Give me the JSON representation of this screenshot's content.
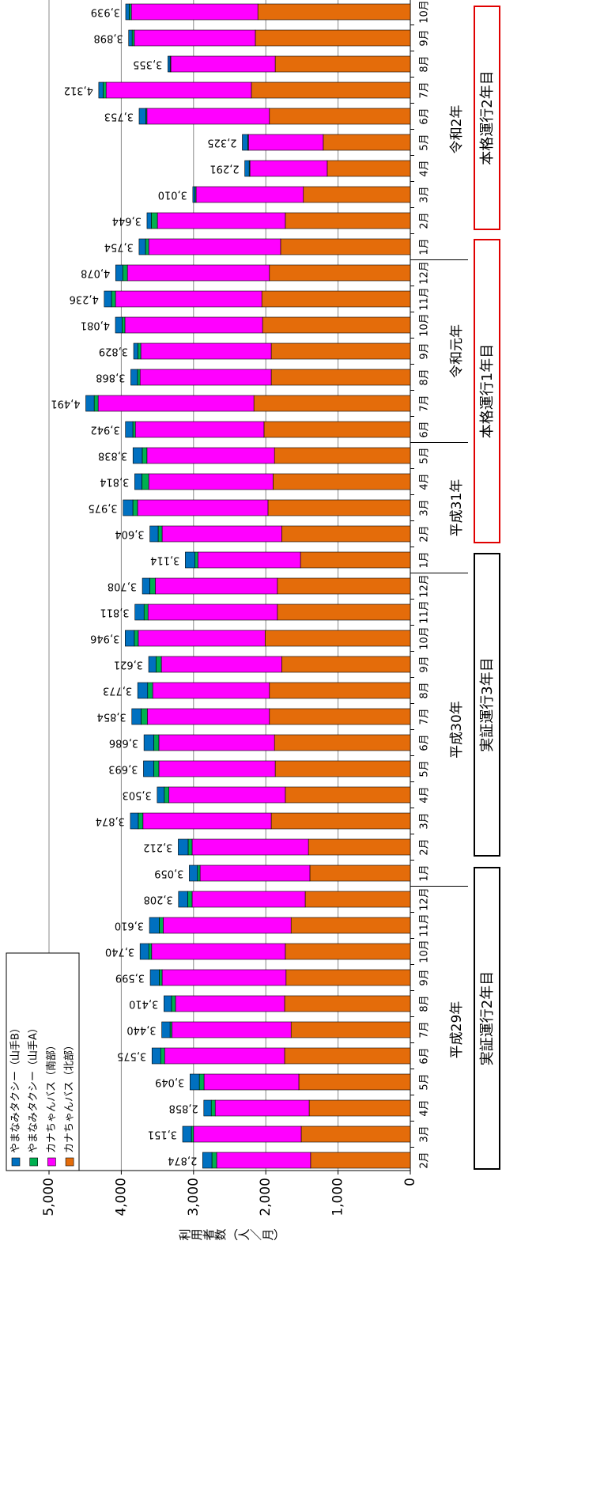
{
  "chart_data": {
    "type": "stacked-bar",
    "y_axis_label": "利用者数（人／月）",
    "ylim": [
      0,
      5000
    ],
    "yticks": [
      0,
      {
        "value": 1000,
        "label": "1,000"
      },
      {
        "value": 2000,
        "label": "2,000"
      },
      {
        "value": 3000,
        "label": "3,000"
      },
      {
        "value": 4000,
        "label": "4,000"
      },
      {
        "value": 5000,
        "label": "5,000"
      }
    ],
    "grid": true,
    "groups": [
      {
        "label": "平成29年",
        "categories": [
          "2月",
          "3月",
          "4月",
          "5月",
          "6月",
          "7月",
          "8月",
          "9月",
          "10月",
          "11月",
          "12月"
        ]
      },
      {
        "label": "平成30年",
        "categories": [
          "1月",
          "2月",
          "3月",
          "4月",
          "5月",
          "6月",
          "7月",
          "8月",
          "9月",
          "10月",
          "11月",
          "12月"
        ]
      },
      {
        "label": "平成31年",
        "categories": [
          "1月",
          "2月",
          "3月",
          "4月",
          "5月"
        ]
      },
      {
        "label": "令和元年",
        "categories": [
          "6月",
          "7月",
          "8月",
          "9月",
          "10月",
          "11月",
          "12月"
        ]
      },
      {
        "label": "令和2年",
        "categories": [
          "1月",
          "2月",
          "3月",
          "4月",
          "5月",
          "6月",
          "7月",
          "8月",
          "9月",
          "10月"
        ]
      }
    ],
    "series": [
      {
        "name": "カナちゃんバス（北部）",
        "color": "#e46c0a",
        "values": [
          1380,
          1510,
          1400,
          1543,
          1740,
          1650,
          1740,
          1720,
          1730,
          1650,
          1455,
          1390,
          1410,
          1925,
          1730,
          1870,
          1880,
          1950,
          1950,
          1780,
          2010,
          1840,
          1840,
          1520,
          1780,
          1970,
          1900,
          1880,
          2025,
          2165,
          1925,
          1925,
          2045,
          2055,
          1950,
          1795,
          1730,
          1480,
          1150,
          1205,
          1950,
          2200,
          1870,
          2145,
          2110
        ]
      },
      {
        "name": "カナちゃんバス（南部）",
        "color": "#ff00ff",
        "values": [
          1300,
          1490,
          1300,
          1312,
          1660,
          1650,
          1510,
          1715,
          1850,
          1770,
          1565,
          1520,
          1610,
          1775,
          1610,
          1610,
          1600,
          1690,
          1615,
          1665,
          1755,
          1790,
          1690,
          1420,
          1655,
          1805,
          1720,
          1765,
          1780,
          2155,
          1815,
          1805,
          1905,
          2025,
          1965,
          1825,
          1770,
          1485,
          1070,
          1035,
          1695,
          2010,
          1445,
          1675,
          1750
        ]
      },
      {
        "name": "やまなみタクシー（山手A）",
        "color": "#00b050",
        "values": [
          66,
          30,
          55,
          65,
          55,
          25,
          55,
          40,
          40,
          55,
          60,
          35,
          55,
          65,
          65,
          70,
          70,
          85,
          70,
          75,
          55,
          55,
          75,
          40,
          55,
          65,
          95,
          65,
          35,
          55,
          35,
          40,
          40,
          55,
          65,
          45,
          85,
          15,
          10,
          10,
          15,
          40,
          10,
          30,
          30
        ]
      },
      {
        "name": "やまなみタクシー（山手B）",
        "color": "#0070c0",
        "values": [
          128,
          121,
          103,
          129,
          120,
          115,
          105,
          124,
          120,
          135,
          128,
          114,
          137,
          109,
          98,
          143,
          136,
          129,
          138,
          101,
          126,
          126,
          103,
          134,
          114,
          135,
          99,
          128,
          102,
          116,
          93,
          59,
          91,
          101,
          98,
          89,
          59,
          30,
          61,
          75,
          93,
          62,
          30,
          48,
          49
        ]
      }
    ],
    "totals": {
      "values": [
        2874,
        3151,
        2858,
        3049,
        3575,
        3440,
        3410,
        3599,
        3740,
        3610,
        3208,
        3059,
        3212,
        3874,
        3503,
        3693,
        3686,
        3854,
        3773,
        3621,
        3946,
        3811,
        3708,
        3114,
        3604,
        3975,
        3814,
        3838,
        3942,
        4491,
        3868,
        3829,
        4081,
        4236,
        4078,
        3754,
        3644,
        3010,
        2291,
        2325,
        3753,
        4312,
        3355,
        3898,
        3939
      ],
      "value_labels": [
        "2,874",
        "3,151",
        "2,858",
        "3,049",
        "3,575",
        "3,440",
        "3,410",
        "3,599",
        "3,740",
        "3,610",
        "3,208",
        "3,059",
        "3,212",
        "3,874",
        "3,503",
        "3,693",
        "3,686",
        "3,854",
        "3,773",
        "3,621",
        "3,946",
        "3,811",
        "3,708",
        "3,114",
        "3,604",
        "3,975",
        "3,814",
        "3,838",
        "3,942",
        "4,491",
        "3,868",
        "3,829",
        "4,081",
        "4,236",
        "4,078",
        "3,754",
        "3,644",
        "3,010",
        "2,291",
        "2,325",
        "3,753",
        "4,312",
        "3,355",
        "3,898",
        "3,939"
      ]
    },
    "periods": [
      {
        "label": "実証運行2年目",
        "color": "#000000"
      },
      {
        "label": "実証運行3年目",
        "color": "#000000"
      },
      {
        "label": "本格運行1年目",
        "color": "#e00000"
      },
      {
        "label": "本格運行2年目",
        "color": "#e00000"
      }
    ]
  }
}
